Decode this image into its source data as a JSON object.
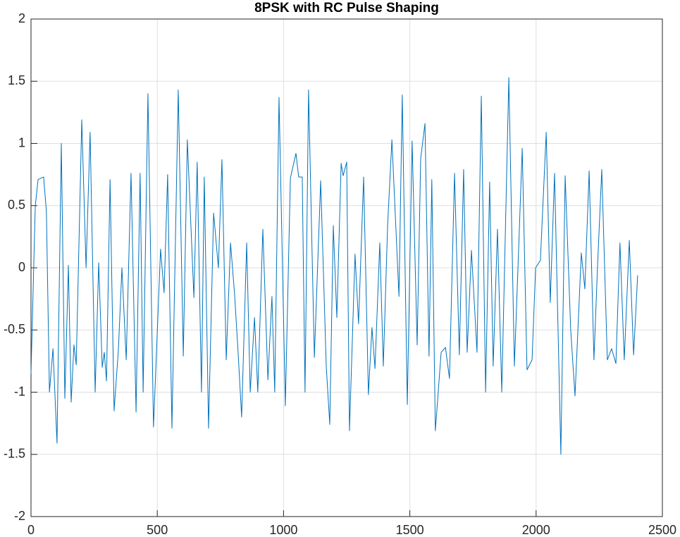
{
  "chart_data": {
    "type": "line",
    "title": "8PSK with RC Pulse Shaping",
    "x": [
      0,
      17,
      28,
      50,
      61,
      73,
      87,
      103,
      120,
      134,
      148,
      159,
      170,
      179,
      201,
      218,
      234,
      254,
      268,
      282,
      290,
      299,
      313,
      329,
      346,
      360,
      377,
      396,
      416,
      432,
      444,
      463,
      485,
      513,
      527,
      541,
      558,
      583,
      603,
      619,
      645,
      658,
      675,
      686,
      703,
      723,
      742,
      756,
      773,
      790,
      806,
      820,
      834,
      854,
      868,
      885,
      898,
      918,
      938,
      954,
      965,
      982,
      1007,
      1027,
      1049,
      1060,
      1074,
      1085,
      1099,
      1122,
      1147,
      1169,
      1183,
      1197,
      1211,
      1228,
      1236,
      1250,
      1261,
      1283,
      1297,
      1317,
      1336,
      1350,
      1362,
      1381,
      1395,
      1412,
      1429,
      1457,
      1470,
      1490,
      1509,
      1529,
      1543,
      1560,
      1576,
      1587,
      1601,
      1624,
      1641,
      1657,
      1677,
      1696,
      1713,
      1727,
      1744,
      1766,
      1783,
      1800,
      1816,
      1830,
      1847,
      1864,
      1892,
      1914,
      1931,
      1945,
      1964,
      1984,
      1998,
      2017,
      2040,
      2056,
      2073,
      2098,
      2115,
      2137,
      2154,
      2179,
      2193,
      2210,
      2229,
      2243,
      2260,
      2282,
      2299,
      2316,
      2332,
      2349,
      2369,
      2386,
      2402
    ],
    "values": [
      -0.85,
      0.5,
      0.71,
      0.73,
      0.45,
      -1.0,
      -0.65,
      -1.41,
      1.0,
      -1.05,
      0.02,
      -1.08,
      -0.62,
      -0.78,
      1.19,
      0,
      1.09,
      -1.0,
      0.04,
      -0.8,
      -0.68,
      -0.91,
      0.71,
      -1.15,
      -0.66,
      0,
      -0.74,
      0.76,
      -1.16,
      0.76,
      -1.0,
      1.4,
      -1.28,
      0.15,
      -0.2,
      0.75,
      -1.29,
      1.43,
      -0.71,
      1.03,
      -0.24,
      0.85,
      -1.0,
      0.73,
      -1.29,
      0.44,
      0,
      0.87,
      -0.74,
      0.2,
      -0.21,
      -0.68,
      -1.2,
      0.2,
      -1.0,
      -0.4,
      -1.0,
      0.31,
      -0.9,
      -0.23,
      -1.0,
      1.37,
      -1.11,
      0.72,
      0.92,
      0.73,
      0.73,
      -1.0,
      1.43,
      -0.72,
      0.7,
      -0.79,
      -1.26,
      0.34,
      -0.4,
      0.84,
      0.74,
      0.85,
      -1.31,
      0.11,
      -0.45,
      0.73,
      -1.02,
      -0.48,
      -0.81,
      0.2,
      -0.79,
      0.34,
      1.03,
      -0.23,
      1.39,
      -1.1,
      1.02,
      -0.62,
      0.88,
      1.16,
      -0.71,
      0.71,
      -1.31,
      -0.68,
      -0.64,
      -0.89,
      0.76,
      -0.7,
      0.79,
      -0.68,
      0.14,
      -0.68,
      1.38,
      -1.0,
      0.69,
      -0.79,
      0.31,
      -1.0,
      1.53,
      -0.79,
      0.16,
      0.96,
      -0.82,
      -0.74,
      0,
      0.06,
      1.09,
      -0.28,
      0.76,
      -1.5,
      0.74,
      -0.5,
      -1.03,
      0.12,
      -0.17,
      0.78,
      -0.74,
      0,
      0.79,
      -0.74,
      -0.65,
      -0.77,
      0.2,
      -0.74,
      0.22,
      -0.7,
      -0.06
    ],
    "color": "#0072bd",
    "xlim": [
      0,
      2500
    ],
    "xticks": [
      0,
      500,
      1000,
      1500,
      2000,
      2500
    ],
    "ylim": [
      -2,
      2
    ],
    "yticks": [
      -2,
      -1.5,
      -1,
      -0.5,
      0,
      0.5,
      1,
      1.5,
      2
    ],
    "grid": true
  }
}
